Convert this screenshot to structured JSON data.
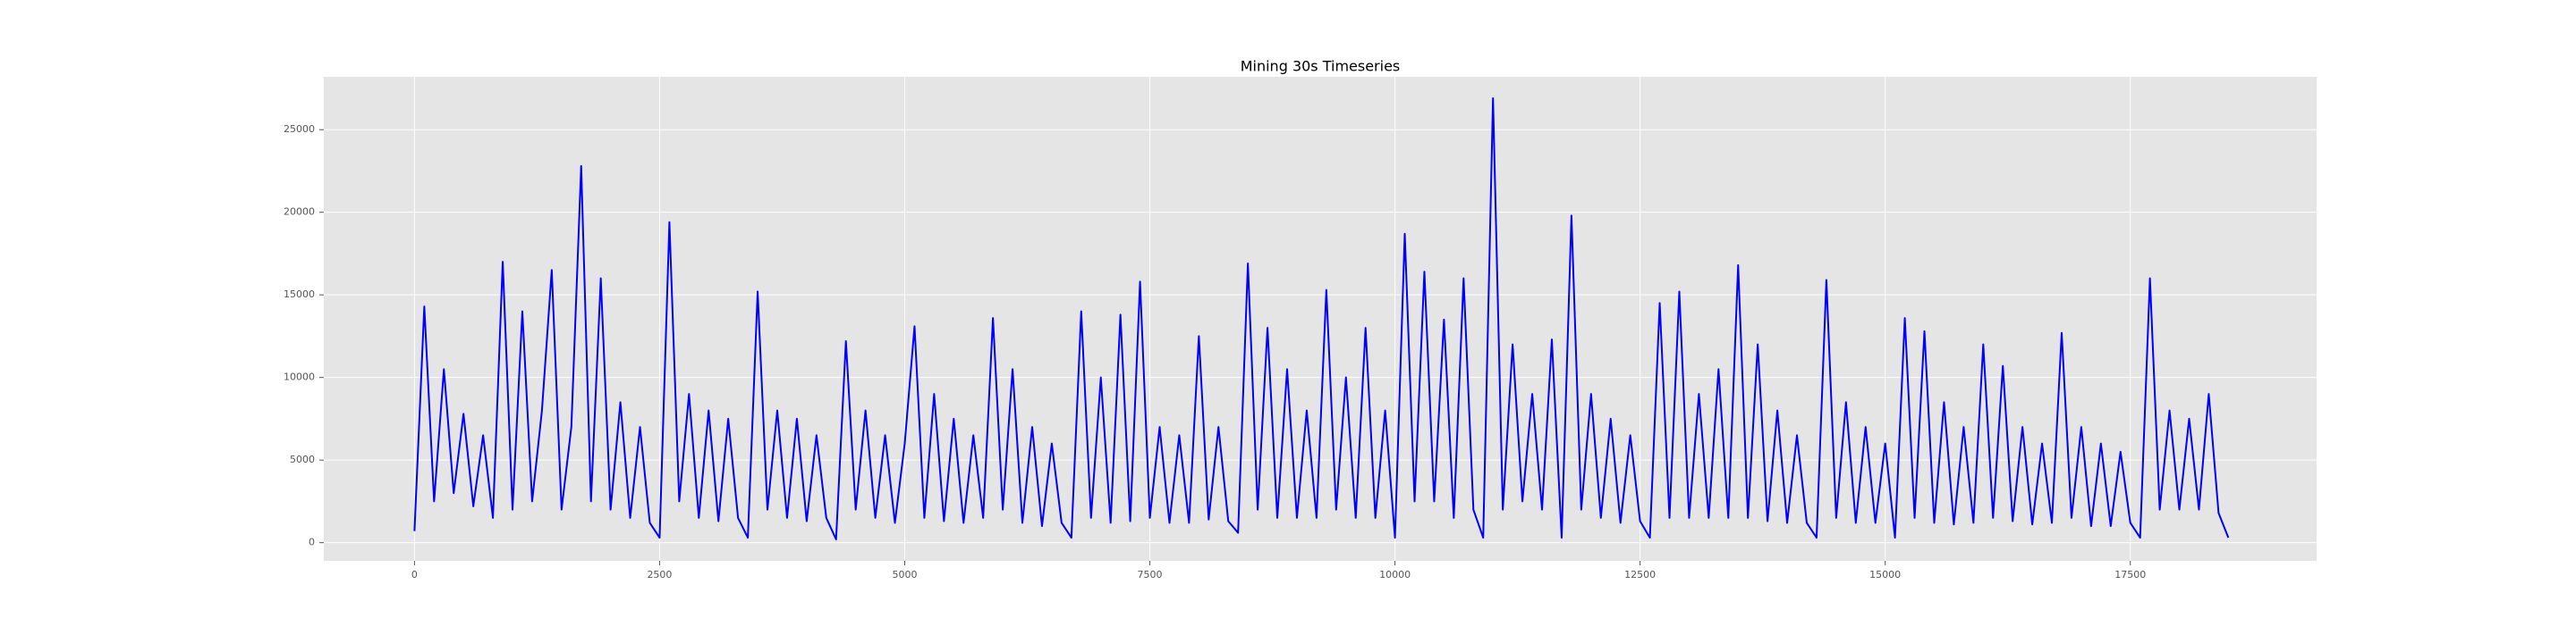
{
  "chart_data": {
    "type": "line",
    "title": "Mining 30s Timeseries",
    "x": [
      0,
      100,
      200,
      300,
      400,
      500,
      600,
      700,
      800,
      900,
      1000,
      1100,
      1200,
      1300,
      1400,
      1500,
      1600,
      1700,
      1800,
      1900,
      2000,
      2100,
      2200,
      2300,
      2400,
      2500,
      2600,
      2700,
      2800,
      2900,
      3000,
      3100,
      3200,
      3300,
      3400,
      3500,
      3600,
      3700,
      3800,
      3900,
      4000,
      4100,
      4200,
      4300,
      4400,
      4500,
      4600,
      4700,
      4800,
      4900,
      5000,
      5100,
      5200,
      5300,
      5400,
      5500,
      5600,
      5700,
      5800,
      5900,
      6000,
      6100,
      6200,
      6300,
      6400,
      6500,
      6600,
      6700,
      6800,
      6900,
      7000,
      7100,
      7200,
      7300,
      7400,
      7500,
      7600,
      7700,
      7800,
      7900,
      8000,
      8100,
      8200,
      8300,
      8400,
      8500,
      8600,
      8700,
      8800,
      8900,
      9000,
      9100,
      9200,
      9300,
      9400,
      9500,
      9600,
      9700,
      9800,
      9900,
      10000,
      10100,
      10200,
      10300,
      10400,
      10500,
      10600,
      10700,
      10800,
      10900,
      11000,
      11100,
      11200,
      11300,
      11400,
      11500,
      11600,
      11700,
      11800,
      11900,
      12000,
      12100,
      12200,
      12300,
      12400,
      12500,
      12600,
      12700,
      12800,
      12900,
      13000,
      13100,
      13200,
      13300,
      13400,
      13500,
      13600,
      13700,
      13800,
      13900,
      14000,
      14100,
      14200,
      14300,
      14400,
      14500,
      14600,
      14700,
      14800,
      14900,
      15000,
      15100,
      15200,
      15300,
      15400,
      15500,
      15600,
      15700,
      15800,
      15900,
      16000,
      16100,
      16200,
      16300,
      16400,
      16500,
      16600,
      16700,
      16800,
      16900,
      17000,
      17100,
      17200,
      17300,
      17400,
      17500,
      17600,
      17700,
      17800,
      17900,
      18000,
      18100,
      18200,
      18300,
      18400,
      18500
    ],
    "series": [
      {
        "color": "#0000ff",
        "values": [
          700,
          14300,
          2500,
          10500,
          3000,
          7800,
          2200,
          6500,
          1500,
          17000,
          2000,
          14000,
          2500,
          8000,
          16500,
          2000,
          7000,
          22800,
          2500,
          16000,
          2000,
          8500,
          1500,
          7000,
          1200,
          300,
          19400,
          2500,
          9000,
          1500,
          8000,
          1300,
          7500,
          1500,
          300,
          15200,
          2000,
          8000,
          1500,
          7500,
          1300,
          6500,
          1500,
          200,
          12200,
          2000,
          8000,
          1500,
          6500,
          1200,
          6000,
          13100,
          1500,
          9000,
          1300,
          7500,
          1200,
          6500,
          1500,
          13600,
          2000,
          10500,
          1200,
          7000,
          1000,
          6000,
          1200,
          300,
          14000,
          1500,
          10000,
          1200,
          13800,
          1300,
          15800,
          1500,
          7000,
          1200,
          6500,
          1200,
          12500,
          1400,
          7000,
          1300,
          600,
          16900,
          2000,
          13000,
          1500,
          10500,
          1500,
          8000,
          1500,
          15300,
          2000,
          10000,
          1500,
          13000,
          1500,
          8000,
          300,
          18700,
          2500,
          16400,
          2500,
          13500,
          1500,
          16000,
          2000,
          300,
          26900,
          2000,
          12000,
          2500,
          9000,
          2000,
          12300,
          300,
          19800,
          2000,
          9000,
          1500,
          7500,
          1200,
          6500,
          1300,
          300,
          14500,
          1500,
          15200,
          1500,
          9000,
          1500,
          10500,
          1500,
          16800,
          1500,
          12000,
          1300,
          8000,
          1200,
          6500,
          1200,
          300,
          15900,
          1500,
          8500,
          1200,
          7000,
          1200,
          6000,
          300,
          13600,
          1500,
          12800,
          1200,
          8500,
          1100,
          7000,
          1200,
          12000,
          1500,
          10700,
          1300,
          7000,
          1100,
          6000,
          1200,
          12700,
          1500,
          7000,
          1000,
          6000,
          1000,
          5500,
          1200,
          300,
          16000,
          2000,
          8000,
          2000,
          7500,
          2000,
          9000,
          1800,
          300
        ]
      }
    ],
    "xlim": [
      -925,
      19400
    ],
    "ylim": [
      -1100,
      28200
    ],
    "xticks": [
      0,
      2500,
      5000,
      7500,
      10000,
      12500,
      15000,
      17500
    ],
    "yticks": [
      0,
      5000,
      10000,
      15000,
      20000,
      25000
    ],
    "grid": true
  }
}
